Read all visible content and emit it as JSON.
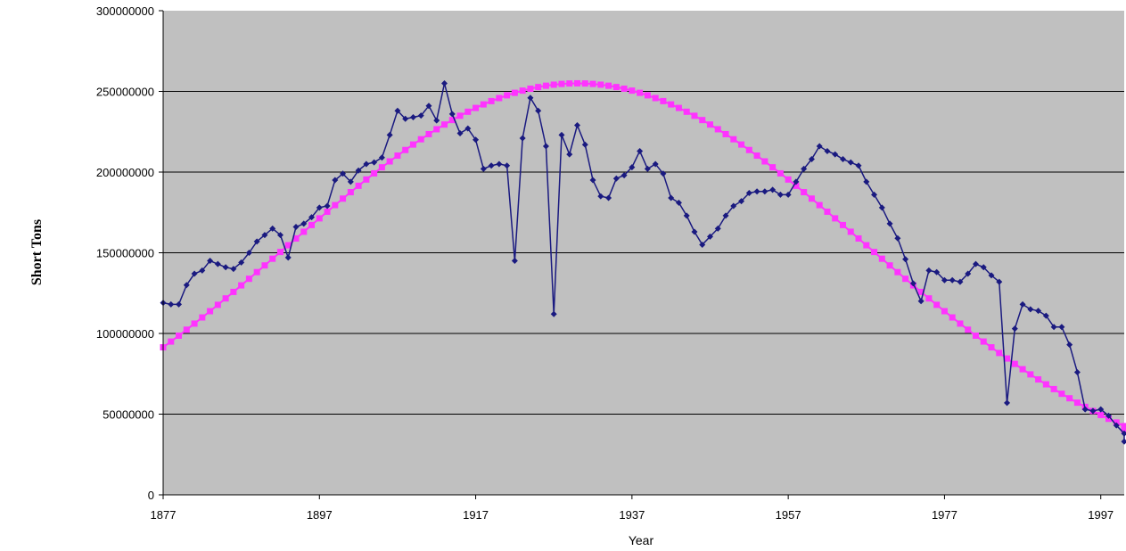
{
  "chart_data": {
    "type": "line",
    "title": "",
    "xlabel": "Year",
    "ylabel": "Short Tons",
    "xlim": [
      1877,
      2000
    ],
    "ylim": [
      0,
      300000000
    ],
    "x_ticks": [
      1877,
      1897,
      1917,
      1937,
      1957,
      1977,
      1997
    ],
    "y_ticks": [
      0,
      50000000,
      100000000,
      150000000,
      200000000,
      250000000,
      300000000
    ],
    "y_tick_labels": [
      "0",
      "50000000",
      "100000000",
      "150000000",
      "200000000",
      "250000000",
      "300000000"
    ],
    "grid": "horizontal",
    "legend": "none",
    "background": "#c0c0c0",
    "series": [
      {
        "marker": "diamond",
        "color": "#1a1a80",
        "points": [
          [
            1877,
            119000000
          ],
          [
            1878,
            118000000
          ],
          [
            1879,
            118000000
          ],
          [
            1880,
            130000000
          ],
          [
            1881,
            137000000
          ],
          [
            1882,
            139000000
          ],
          [
            1883,
            145000000
          ],
          [
            1884,
            143000000
          ],
          [
            1885,
            141000000
          ],
          [
            1886,
            140000000
          ],
          [
            1887,
            144000000
          ],
          [
            1888,
            150000000
          ],
          [
            1889,
            157000000
          ],
          [
            1890,
            161000000
          ],
          [
            1891,
            165000000
          ],
          [
            1892,
            161000000
          ],
          [
            1893,
            147000000
          ],
          [
            1894,
            166000000
          ],
          [
            1895,
            168000000
          ],
          [
            1896,
            172000000
          ],
          [
            1897,
            178000000
          ],
          [
            1898,
            179000000
          ],
          [
            1899,
            195000000
          ],
          [
            1900,
            199000000
          ],
          [
            1901,
            194000000
          ],
          [
            1902,
            201000000
          ],
          [
            1903,
            205000000
          ],
          [
            1904,
            206000000
          ],
          [
            1905,
            209000000
          ],
          [
            1906,
            223000000
          ],
          [
            1907,
            238000000
          ],
          [
            1908,
            233000000
          ],
          [
            1909,
            234000000
          ],
          [
            1910,
            235000000
          ],
          [
            1911,
            241000000
          ],
          [
            1912,
            232000000
          ],
          [
            1913,
            255000000
          ],
          [
            1914,
            236000000
          ],
          [
            1915,
            224000000
          ],
          [
            1916,
            227000000
          ],
          [
            1917,
            220000000
          ],
          [
            1918,
            202000000
          ],
          [
            1919,
            204000000
          ],
          [
            1920,
            205000000
          ],
          [
            1921,
            204000000
          ],
          [
            1922,
            145000000
          ],
          [
            1923,
            221000000
          ],
          [
            1924,
            246000000
          ],
          [
            1925,
            238000000
          ],
          [
            1926,
            216000000
          ],
          [
            1927,
            112000000
          ],
          [
            1928,
            223000000
          ],
          [
            1929,
            211000000
          ],
          [
            1930,
            229000000
          ],
          [
            1931,
            217000000
          ],
          [
            1932,
            195000000
          ],
          [
            1933,
            185000000
          ],
          [
            1934,
            184000000
          ],
          [
            1935,
            196000000
          ],
          [
            1936,
            198000000
          ],
          [
            1937,
            203000000
          ],
          [
            1938,
            213000000
          ],
          [
            1939,
            202000000
          ],
          [
            1940,
            205000000
          ],
          [
            1941,
            199000000
          ],
          [
            1942,
            184000000
          ],
          [
            1943,
            181000000
          ],
          [
            1944,
            173000000
          ],
          [
            1945,
            163000000
          ],
          [
            1946,
            155000000
          ],
          [
            1947,
            160000000
          ],
          [
            1948,
            165000000
          ],
          [
            1949,
            173000000
          ],
          [
            1950,
            179000000
          ],
          [
            1951,
            182000000
          ],
          [
            1952,
            187000000
          ],
          [
            1953,
            188000000
          ],
          [
            1954,
            188000000
          ],
          [
            1955,
            189000000
          ],
          [
            1956,
            186000000
          ],
          [
            1957,
            186000000
          ],
          [
            1958,
            194000000
          ],
          [
            1959,
            202000000
          ],
          [
            1960,
            208000000
          ],
          [
            1961,
            216000000
          ],
          [
            1962,
            213000000
          ],
          [
            1963,
            211000000
          ],
          [
            1964,
            208000000
          ],
          [
            1965,
            206000000
          ],
          [
            1966,
            204000000
          ],
          [
            1967,
            194000000
          ],
          [
            1968,
            186000000
          ],
          [
            1969,
            178000000
          ],
          [
            1970,
            168000000
          ],
          [
            1971,
            159000000
          ],
          [
            1972,
            146000000
          ],
          [
            1973,
            131000000
          ],
          [
            1974,
            120000000
          ],
          [
            1975,
            139000000
          ],
          [
            1976,
            138000000
          ],
          [
            1977,
            133000000
          ],
          [
            1978,
            133000000
          ],
          [
            1979,
            132000000
          ],
          [
            1980,
            137000000
          ],
          [
            1981,
            143000000
          ],
          [
            1982,
            141000000
          ],
          [
            1983,
            136000000
          ],
          [
            1984,
            132000000
          ],
          [
            1985,
            57000000
          ],
          [
            1986,
            103000000
          ],
          [
            1987,
            118000000
          ],
          [
            1988,
            115000000
          ],
          [
            1989,
            114000000
          ],
          [
            1990,
            111000000
          ],
          [
            1991,
            104000000
          ],
          [
            1992,
            104000000
          ],
          [
            1993,
            93000000
          ],
          [
            1994,
            76000000
          ],
          [
            1995,
            53000000
          ],
          [
            1996,
            52000000
          ],
          [
            1997,
            53000000
          ],
          [
            1998,
            49000000
          ],
          [
            1999,
            43000000
          ],
          [
            2000,
            38000000
          ],
          [
            2001,
            33000000
          ]
        ]
      },
      {
        "marker": "square",
        "color": "#ff33ff",
        "curve": "gaussian",
        "peak_year": 1930,
        "peak_value": 255000000,
        "sigma_years": 37,
        "x_start": 1877,
        "x_end": 2001,
        "x_step": 1
      }
    ]
  }
}
